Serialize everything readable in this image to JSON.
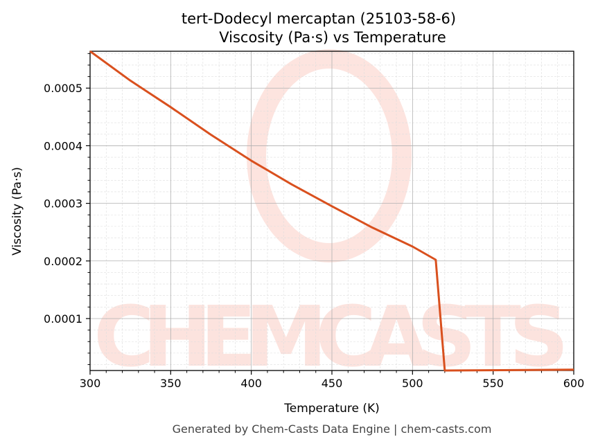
{
  "chart_data": {
    "type": "line",
    "title": "tert-Dodecyl mercaptan (25103-58-6)\nViscosity (Pa·s) vs Temperature",
    "title_lines": [
      "tert-Dodecyl mercaptan (25103-58-6)",
      "Viscosity (Pa·s) vs Temperature"
    ],
    "xlabel": "Temperature (K)",
    "ylabel": "Viscosity (Pa·s)",
    "xlim": [
      300,
      600
    ],
    "ylim": [
      9.8e-06,
      0.000564
    ],
    "xticks": [
      300,
      350,
      400,
      450,
      500,
      550,
      600
    ],
    "yticks": [
      0.0001,
      0.0002,
      0.0003,
      0.0004,
      0.0005
    ],
    "ytick_labels": [
      "0.0001",
      "0.0002",
      "0.0003",
      "0.0004",
      "0.0005"
    ],
    "grid": true,
    "series": [
      {
        "color": "#d9501e",
        "x": [
          300,
          325,
          350,
          375,
          400,
          425,
          450,
          475,
          500,
          514.4,
          520,
          600
        ],
        "y": [
          0.000564,
          0.000513,
          0.000467,
          0.000419,
          0.000374,
          0.000333,
          0.000295,
          0.000258,
          0.000225,
          0.000202,
          9.8e-06,
          1.13e-05
        ]
      }
    ]
  },
  "watermark": "CHEMCASTS",
  "footer": "Generated by Chem-Casts Data Engine | chem-casts.com"
}
